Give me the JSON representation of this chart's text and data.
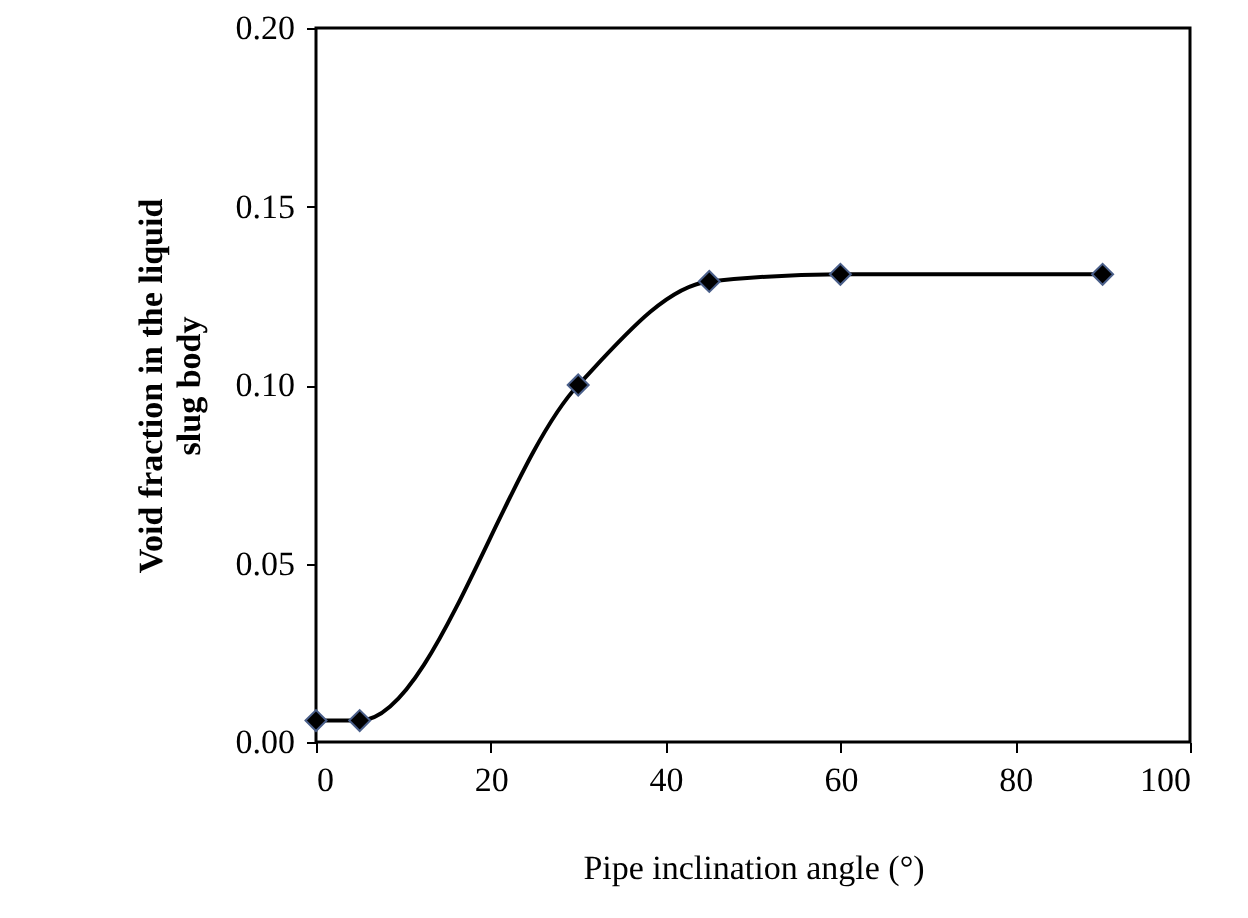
{
  "chart_data": {
    "type": "line",
    "xlabel": "Pipe inclination angle (°)",
    "ylabel": "Void fraction in the liquid slug body",
    "x": [
      0,
      5,
      30,
      45,
      60,
      90
    ],
    "series": [
      {
        "color": "#000000",
        "values": [
          0.006,
          0.006,
          0.1,
          0.129,
          0.131,
          0.131
        ]
      }
    ],
    "xlim": [
      0,
      100
    ],
    "xticks": [
      0,
      20,
      40,
      60,
      80,
      100
    ],
    "ylim": [
      0,
      0.2
    ],
    "yticks": [
      {
        "value": 0,
        "label": "0.00"
      },
      {
        "value": 0.05,
        "label": "0.05"
      },
      {
        "value": 0.1,
        "label": "0.10"
      },
      {
        "value": 0.15,
        "label": "0.15"
      },
      {
        "value": 0.2,
        "label": "0.20"
      }
    ],
    "grid": false,
    "marker": "diamond",
    "line_style": "solid"
  }
}
